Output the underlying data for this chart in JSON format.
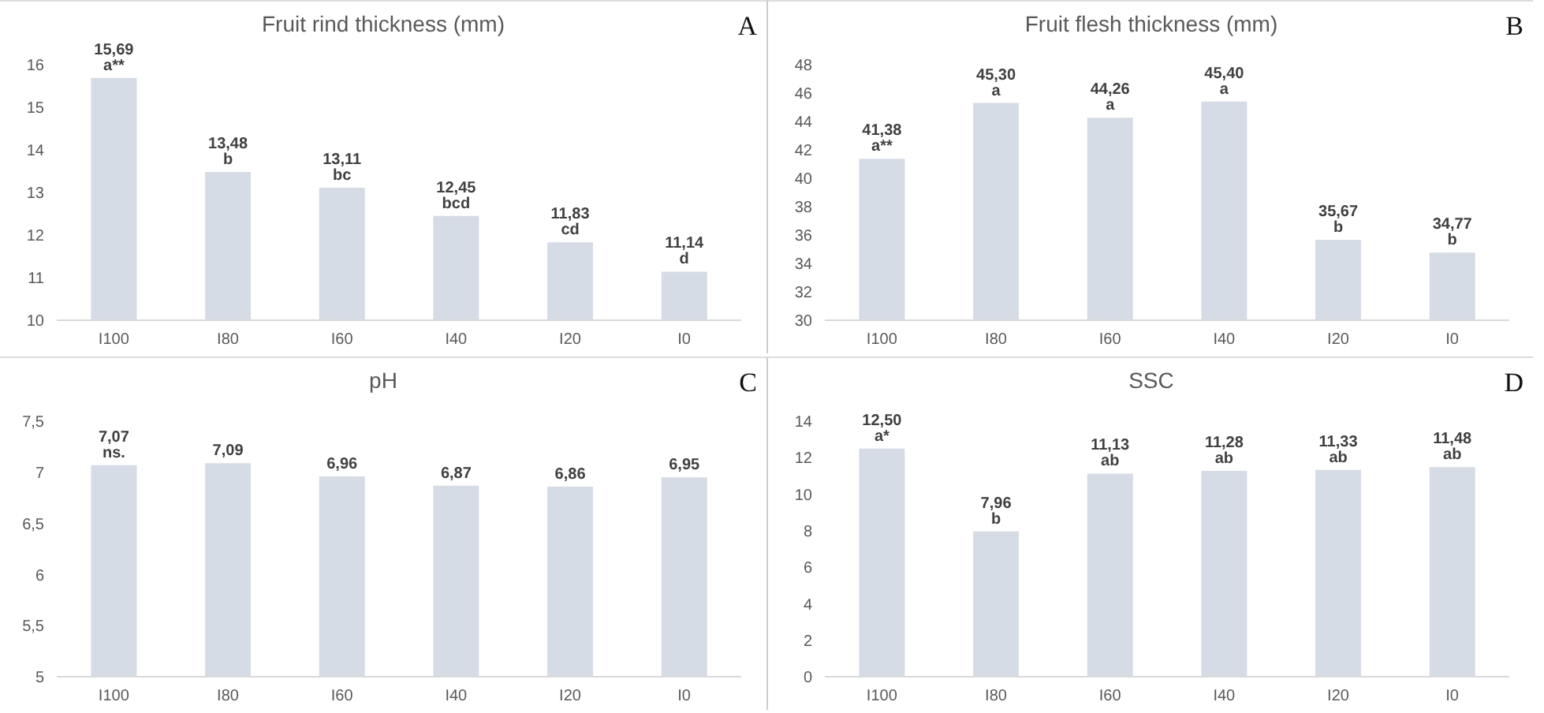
{
  "chart_data": [
    {
      "type": "bar",
      "title": "Fruit rind thickness (mm)",
      "categories": [
        "I100",
        "I80",
        "I60",
        "I40",
        "I20",
        "I0"
      ],
      "values": [
        15.69,
        13.48,
        13.11,
        12.45,
        11.83,
        11.14
      ],
      "value_labels": [
        "15,69 a**",
        "13,48 b",
        "13,11 bc",
        "12,45 bcd",
        "11,83 cd",
        "11,14 d"
      ],
      "color": "#d6dce5",
      "ylim": [
        10,
        16
      ],
      "yticks": [
        10,
        11,
        12,
        13,
        14,
        15,
        16
      ],
      "annotations": [
        "A"
      ]
    },
    {
      "type": "bar",
      "title": "Fruit flesh thickness (mm)",
      "categories": [
        "I100",
        "I80",
        "I60",
        "I40",
        "I20",
        "I0"
      ],
      "values": [
        41.38,
        45.3,
        44.26,
        45.4,
        35.67,
        34.77
      ],
      "value_labels": [
        "41,38 a**",
        "45,30 a",
        "44,26 a",
        "45,40 a",
        "35,67 b",
        "34,77 b"
      ],
      "color": "#d6dce5",
      "ylim": [
        30,
        48
      ],
      "yticks": [
        30,
        32,
        34,
        36,
        38,
        40,
        42,
        44,
        46,
        48
      ],
      "annotations": [
        "B"
      ]
    },
    {
      "type": "bar",
      "title": "pH",
      "categories": [
        "I100",
        "I80",
        "I60",
        "I40",
        "I20",
        "I0"
      ],
      "values": [
        7.07,
        7.09,
        6.96,
        6.87,
        6.86,
        6.95
      ],
      "value_labels": [
        "7,07 ns.",
        "7,09",
        "6,96",
        "6,87",
        "6,86",
        "6,95"
      ],
      "color": "#d6dce5",
      "ylim": [
        5,
        7.5
      ],
      "yticks": [
        5,
        {
          "value": 5.5,
          "label": "5,5"
        },
        6,
        {
          "value": 6.5,
          "label": "6,5"
        },
        7,
        {
          "value": 7.5,
          "label": "7,5"
        }
      ],
      "annotations": [
        "C"
      ]
    },
    {
      "type": "bar",
      "title": "SSC",
      "categories": [
        "I100",
        "I80",
        "I60",
        "I40",
        "I20",
        "I0"
      ],
      "values": [
        12.5,
        7.96,
        11.13,
        11.28,
        11.33,
        11.48
      ],
      "value_labels": [
        "12,50 a*",
        "7,96 b",
        "11,13 ab",
        "11,28 ab",
        "11,33 ab",
        "11,48 ab"
      ],
      "color": "#d6dce5",
      "ylim": [
        0,
        14
      ],
      "yticks": [
        0,
        2,
        4,
        6,
        8,
        10,
        12,
        14
      ],
      "annotations": [
        "D"
      ]
    }
  ]
}
